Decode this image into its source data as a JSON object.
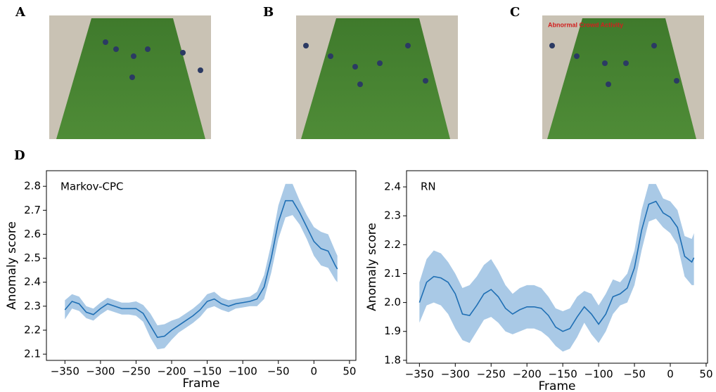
{
  "panels": {
    "labels": [
      "A",
      "B",
      "C",
      "D"
    ],
    "overlay_text": "Abnormal Crowd Activity"
  },
  "chart_data": [
    {
      "type": "line",
      "annotation": "Markov-CPC",
      "xlabel": "Frame",
      "ylabel": "Anomaly score",
      "x": [
        -350,
        -340,
        -330,
        -320,
        -310,
        -300,
        -290,
        -280,
        -270,
        -260,
        -250,
        -240,
        -230,
        -220,
        -210,
        -200,
        -190,
        -180,
        -170,
        -160,
        -150,
        -140,
        -130,
        -120,
        -110,
        -100,
        -90,
        -80,
        -70,
        -60,
        -50,
        -40,
        -30,
        -20,
        -10,
        0,
        10,
        20,
        30,
        33
      ],
      "series": [
        {
          "color": "#1f6fb4",
          "band_color": "#a9c9e6",
          "values": [
            2.285,
            2.32,
            2.31,
            2.275,
            2.265,
            2.29,
            2.31,
            2.3,
            2.29,
            2.29,
            2.29,
            2.27,
            2.22,
            2.17,
            2.175,
            2.2,
            2.22,
            2.24,
            2.26,
            2.285,
            2.32,
            2.33,
            2.31,
            2.3,
            2.31,
            2.315,
            2.32,
            2.33,
            2.38,
            2.5,
            2.65,
            2.74,
            2.74,
            2.69,
            2.63,
            2.57,
            2.54,
            2.53,
            2.47,
            2.455
          ],
          "lower": [
            2.245,
            2.29,
            2.28,
            2.25,
            2.24,
            2.265,
            2.285,
            2.275,
            2.265,
            2.265,
            2.26,
            2.235,
            2.17,
            2.12,
            2.125,
            2.16,
            2.19,
            2.21,
            2.23,
            2.255,
            2.29,
            2.3,
            2.285,
            2.275,
            2.29,
            2.295,
            2.3,
            2.3,
            2.33,
            2.44,
            2.58,
            2.67,
            2.68,
            2.64,
            2.58,
            2.51,
            2.47,
            2.46,
            2.41,
            2.4
          ],
          "upper": [
            2.325,
            2.35,
            2.34,
            2.3,
            2.29,
            2.315,
            2.335,
            2.325,
            2.315,
            2.315,
            2.32,
            2.305,
            2.27,
            2.22,
            2.225,
            2.24,
            2.25,
            2.27,
            2.29,
            2.315,
            2.35,
            2.36,
            2.335,
            2.325,
            2.33,
            2.335,
            2.34,
            2.36,
            2.43,
            2.56,
            2.72,
            2.81,
            2.81,
            2.74,
            2.68,
            2.63,
            2.61,
            2.6,
            2.53,
            2.51
          ]
        }
      ],
      "xlim": [
        -376,
        59
      ],
      "ylim": [
        2.074,
        2.865
      ],
      "xticks": [
        {
          "value": -350,
          "label": "−350"
        },
        {
          "value": -300,
          "label": "−300"
        },
        {
          "value": -250,
          "label": "−250"
        },
        {
          "value": -200,
          "label": "−200"
        },
        {
          "value": -150,
          "label": "−150"
        },
        {
          "value": -100,
          "label": "−100"
        },
        {
          "value": -50,
          "label": "−50"
        },
        0,
        50
      ],
      "yticks": [
        2.1,
        2.2,
        2.3,
        2.4,
        2.5,
        2.6,
        2.7,
        2.8
      ]
    },
    {
      "type": "line",
      "annotation": "RN",
      "xlabel": "Frame",
      "ylabel": "Anomaly score",
      "x": [
        -350,
        -340,
        -330,
        -320,
        -310,
        -300,
        -290,
        -280,
        -270,
        -260,
        -250,
        -240,
        -230,
        -220,
        -210,
        -200,
        -190,
        -180,
        -170,
        -160,
        -150,
        -140,
        -130,
        -120,
        -110,
        -100,
        -90,
        -80,
        -70,
        -60,
        -50,
        -40,
        -30,
        -20,
        -10,
        0,
        10,
        20,
        30,
        33
      ],
      "series": [
        {
          "color": "#1f6fb4",
          "band_color": "#a9c9e6",
          "values": [
            2.0,
            2.07,
            2.09,
            2.085,
            2.07,
            2.03,
            1.96,
            1.955,
            1.99,
            2.03,
            2.045,
            2.02,
            1.98,
            1.96,
            1.975,
            1.985,
            1.985,
            1.98,
            1.955,
            1.915,
            1.9,
            1.91,
            1.95,
            1.985,
            1.96,
            1.925,
            1.96,
            2.02,
            2.03,
            2.05,
            2.12,
            2.25,
            2.34,
            2.35,
            2.31,
            2.295,
            2.26,
            2.16,
            2.14,
            2.155
          ],
          "lower": [
            1.93,
            1.99,
            2.0,
            1.99,
            1.96,
            1.91,
            1.87,
            1.86,
            1.9,
            1.94,
            1.95,
            1.93,
            1.9,
            1.89,
            1.9,
            1.91,
            1.91,
            1.9,
            1.88,
            1.85,
            1.83,
            1.84,
            1.88,
            1.93,
            1.89,
            1.86,
            1.9,
            1.96,
            1.99,
            2.0,
            2.06,
            2.18,
            2.28,
            2.29,
            2.26,
            2.24,
            2.2,
            2.09,
            2.06,
            2.06
          ],
          "upper": [
            2.07,
            2.15,
            2.18,
            2.17,
            2.14,
            2.1,
            2.05,
            2.06,
            2.09,
            2.13,
            2.15,
            2.11,
            2.06,
            2.03,
            2.05,
            2.06,
            2.06,
            2.05,
            2.02,
            1.98,
            1.97,
            1.98,
            2.02,
            2.04,
            2.03,
            1.99,
            2.03,
            2.08,
            2.07,
            2.1,
            2.18,
            2.32,
            2.41,
            2.41,
            2.36,
            2.35,
            2.32,
            2.23,
            2.22,
            2.24
          ]
        }
      ],
      "xlim": [
        -368,
        52
      ],
      "ylim": [
        1.79,
        2.456
      ],
      "xticks": [
        {
          "value": -350,
          "label": "−350"
        },
        {
          "value": -300,
          "label": "−300"
        },
        {
          "value": -250,
          "label": "−250"
        },
        {
          "value": -200,
          "label": "−200"
        },
        {
          "value": -150,
          "label": "−150"
        },
        {
          "value": -100,
          "label": "−100"
        },
        {
          "value": -50,
          "label": "−50"
        },
        0,
        50
      ],
      "yticks": [
        1.8,
        1.9,
        {
          "value": 2,
          "label": "2.0"
        },
        2.1,
        2.2,
        2.3,
        2.4
      ]
    }
  ]
}
